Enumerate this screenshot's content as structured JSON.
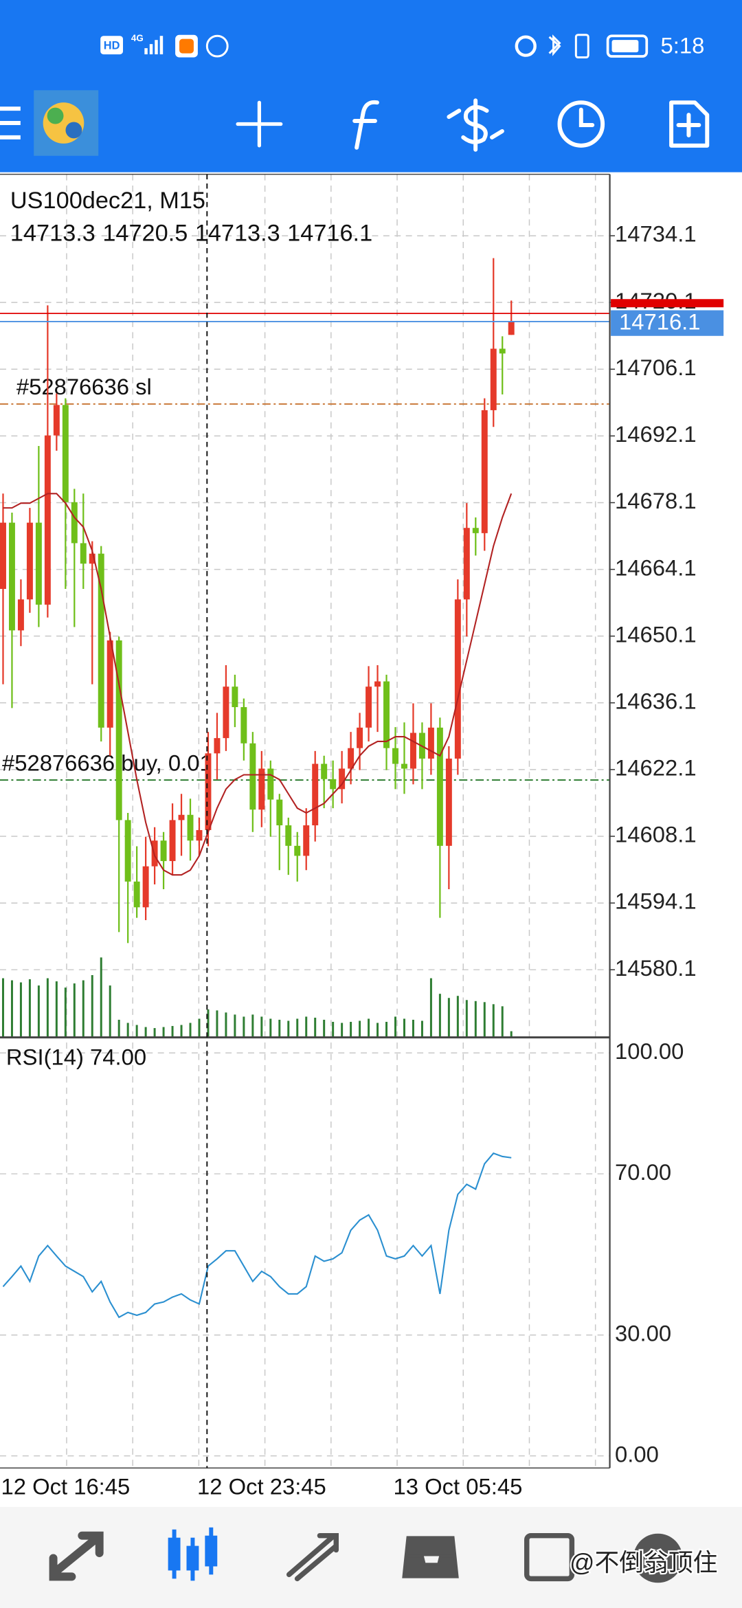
{
  "status_bar": {
    "hd": "HD",
    "network": "4G",
    "time": "5:18"
  },
  "watermark": "@不倒翁顶住",
  "chart_data": {
    "type": "candlestick",
    "title": "US100dec21, M15",
    "categories": [
      "12 Oct 16:45",
      null,
      null,
      null,
      null,
      null,
      null,
      null,
      null,
      null,
      null,
      null,
      null,
      null,
      null,
      null,
      null,
      null,
      null,
      null,
      null,
      null,
      "12 Oct 23:45",
      null,
      null,
      null,
      null,
      null,
      null,
      null,
      null,
      null,
      null,
      null,
      null,
      null,
      null,
      null,
      null,
      null,
      null,
      null,
      null,
      null,
      "13 Oct 05:45",
      null,
      null,
      null,
      null,
      null,
      null,
      null,
      null,
      null,
      null,
      null,
      null,
      null
    ],
    "candles": {
      "open": [
        14660.0,
        14673.9,
        14651.3,
        14657.8,
        14673.9,
        14656.7,
        14692.2,
        14698.6,
        14678.2,
        14669.6,
        14665.3,
        14667.4,
        14630.9,
        14649.2,
        14611.5,
        14598.6,
        14593.2,
        14601.8,
        14607.2,
        14602.9,
        14611.5,
        14612.6,
        14607.2,
        14609.4,
        14625.5,
        14628.7,
        14639.5,
        14635.2,
        14627.6,
        14613.7,
        14622.3,
        14615.8,
        14610.4,
        14606.1,
        14604.0,
        14610.4,
        14623.3,
        14620.1,
        14618.0,
        14622.3,
        14626.6,
        14630.9,
        14639.5,
        14640.6,
        14626.6,
        14623.3,
        14622.3,
        14629.8,
        14624.4,
        14630.9,
        14606.1,
        14624.4,
        14657.8,
        14672.8,
        14671.7,
        14697.5,
        14710.4,
        14713.3
      ],
      "high": [
        14680.0,
        14676.0,
        14662.0,
        14677.0,
        14690.0,
        14719.5,
        14701.0,
        14700.0,
        14681.0,
        14680.0,
        14670.0,
        14669.0,
        14651.0,
        14650.0,
        14613.0,
        14606.0,
        14608.0,
        14610.0,
        14609.0,
        14615.0,
        14617.0,
        14616.0,
        14612.0,
        14630.0,
        14634.0,
        14644.0,
        14642.0,
        14637.0,
        14630.0,
        14626.0,
        14624.0,
        14617.0,
        14612.0,
        14609.0,
        14614.0,
        14626.0,
        14625.0,
        14624.0,
        14626.0,
        14630.0,
        14634.0,
        14643.8,
        14644.0,
        14642.0,
        14631.0,
        14632.0,
        14636.0,
        14632.0,
        14636.0,
        14633.0,
        14627.0,
        14662.0,
        14678.0,
        14675.0,
        14700.0,
        14729.4,
        14713.0,
        14720.5
      ],
      "low": [
        14640.0,
        14635.0,
        14648.0,
        14655.0,
        14652.0,
        14654.0,
        14689.0,
        14660.0,
        14652.0,
        14660.0,
        14640.0,
        14628.0,
        14625.0,
        14588.0,
        14585.7,
        14591.0,
        14590.5,
        14598.0,
        14597.0,
        14600.0,
        14604.0,
        14603.0,
        14604.0,
        14606.0,
        14620.0,
        14626.0,
        14631.0,
        14624.0,
        14609.0,
        14610.0,
        14608.0,
        14601.0,
        14600.0,
        14598.6,
        14601.0,
        14607.0,
        14614.0,
        14614.0,
        14615.0,
        14619.0,
        14622.0,
        14628.0,
        14630.0,
        14622.0,
        14618.0,
        14617.0,
        14619.0,
        14618.0,
        14621.0,
        14591.0,
        14597.0,
        14621.0,
        14650.0,
        14667.0,
        14668.0,
        14694.0,
        14700.8,
        14713.3
      ],
      "close": [
        14673.9,
        14651.3,
        14657.8,
        14673.9,
        14656.7,
        14692.2,
        14698.6,
        14678.2,
        14669.6,
        14665.3,
        14667.4,
        14630.9,
        14649.2,
        14611.5,
        14598.6,
        14593.2,
        14601.8,
        14607.2,
        14602.9,
        14611.5,
        14612.6,
        14607.2,
        14609.4,
        14625.5,
        14628.7,
        14639.5,
        14635.2,
        14627.6,
        14613.7,
        14622.3,
        14615.8,
        14610.4,
        14606.1,
        14604.0,
        14610.4,
        14623.3,
        14620.1,
        14618.0,
        14622.3,
        14626.6,
        14630.9,
        14639.5,
        14640.6,
        14626.6,
        14623.3,
        14622.3,
        14629.8,
        14624.4,
        14630.9,
        14606.1,
        14624.4,
        14657.8,
        14672.8,
        14671.7,
        14697.5,
        14710.4,
        14709.4,
        14716.1
      ]
    },
    "up_color": "#e53a2a",
    "down_color": "#6fbf1a",
    "volume": [
      57,
      55,
      53,
      56,
      50,
      57,
      54,
      48,
      52,
      55,
      60,
      77,
      50,
      17,
      14,
      12,
      10,
      9,
      10,
      11,
      12,
      14,
      18,
      27,
      26,
      24,
      22,
      20,
      22,
      20,
      18,
      17,
      16,
      18,
      20,
      19,
      17,
      15,
      14,
      15,
      16,
      18,
      14,
      15,
      20,
      18,
      17,
      16,
      57,
      42,
      38,
      40,
      36,
      35,
      34,
      32,
      30,
      6
    ],
    "volume_color": "#2e7d32",
    "ma": [
      14677,
      14677,
      14678,
      14678,
      14679,
      14680,
      14680,
      14678,
      14675,
      14673,
      14668,
      14660,
      14650,
      14640,
      14630,
      14620,
      14611,
      14604,
      14601,
      14600,
      14600,
      14601,
      14604,
      14609,
      14614,
      14618,
      14620,
      14621,
      14621,
      14621,
      14621,
      14620,
      14617,
      14614,
      14613,
      14614,
      14615,
      14617,
      14619,
      14622,
      14625,
      14627,
      14628,
      14628,
      14629,
      14629,
      14628,
      14627,
      14626,
      14625,
      14629,
      14637,
      14645,
      14653,
      14661,
      14669,
      14675,
      14680
    ],
    "ma_color": "#b22222",
    "ylim": [
      14565.9,
      14747.0
    ],
    "yticks": [
      14734.1,
      14720.1,
      14706.1,
      14692.1,
      14678.1,
      14664.1,
      14650.1,
      14636.1,
      14622.1,
      14608.1,
      14594.1,
      14580.1
    ],
    "grid": true,
    "bid": 14716.1,
    "bid_color": "#4a90e2",
    "ask": 14717.8,
    "ask_color": "#e00000",
    "order_lines": [
      {
        "label": "#52876636 sl",
        "price": 14698.8,
        "color": "#c87533"
      },
      {
        "label": "#52876636 buy, 0.01",
        "price": 14619.9,
        "color": "#2e7d32"
      }
    ],
    "rsi": {
      "title": "RSI(14) 74.00",
      "values": [
        42.0,
        44.5,
        47.1,
        43.3,
        49.6,
        52.2,
        49.6,
        47.1,
        45.8,
        44.5,
        40.7,
        43.3,
        38.2,
        34.4,
        35.6,
        34.9,
        35.6,
        37.7,
        38.2,
        39.4,
        40.2,
        38.7,
        37.7,
        47.1,
        48.9,
        50.9,
        50.9,
        47.1,
        43.3,
        45.8,
        44.5,
        42.0,
        40.2,
        40.2,
        42.0,
        49.6,
        48.3,
        48.9,
        50.4,
        56.0,
        58.5,
        59.8,
        56.0,
        49.6,
        48.9,
        49.6,
        52.2,
        49.6,
        52.2,
        40.2,
        56.0,
        64.9,
        67.4,
        66.2,
        72.5,
        75.1,
        74.3,
        74.0
      ],
      "color": "#2a8fd0",
      "ylim": [
        -3.0,
        103.6
      ],
      "yticks": [
        {
          "value": 100,
          "label": "100.00"
        },
        {
          "value": 70,
          "label": "70.00"
        },
        {
          "value": 30,
          "label": "30.00"
        },
        {
          "value": 0,
          "label": "0.00"
        }
      ]
    }
  }
}
